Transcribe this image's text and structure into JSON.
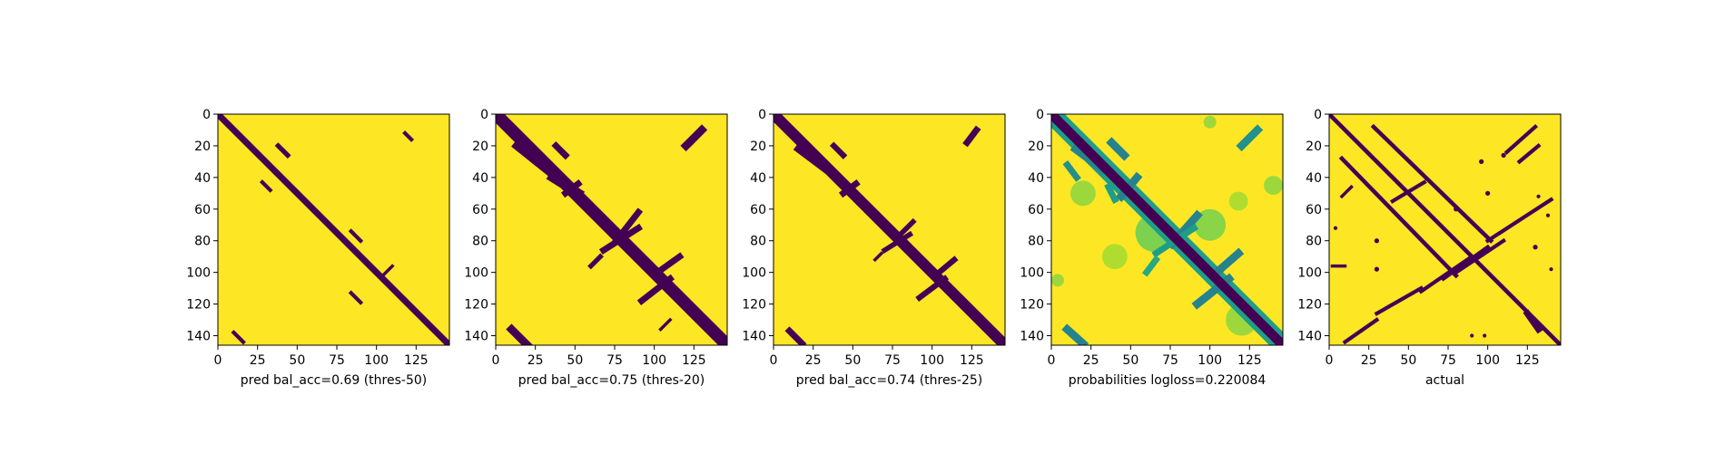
{
  "figure": {
    "background": "#ffffff"
  },
  "colors": {
    "background_class": "#fde725",
    "contact_class": "#440154",
    "colormap": "viridis"
  },
  "chart_data": [
    {
      "type": "heatmap",
      "title": "",
      "xlabel": "pred bal_acc=0.69 (thres-50)",
      "ylabel": "",
      "size": 146,
      "xlim": [
        0,
        146
      ],
      "ylim": [
        146,
        0
      ],
      "xticks": [
        0,
        25,
        50,
        75,
        100,
        125
      ],
      "yticks": [
        0,
        20,
        40,
        60,
        80,
        100,
        120,
        140
      ],
      "grid": false,
      "diagonal_halfwidth": 2,
      "segments": [
        {
          "x0": 38,
          "y0": 20,
          "x1": 44,
          "y1": 26,
          "w": 1.5,
          "v": 0
        },
        {
          "x0": 118,
          "y0": 12,
          "x1": 122,
          "y1": 16,
          "w": 1.2,
          "v": 0
        },
        {
          "x0": 10,
          "y0": 138,
          "x1": 16,
          "y1": 144,
          "w": 1.2,
          "v": 0
        },
        {
          "x0": 28,
          "y0": 43,
          "x1": 33,
          "y1": 48,
          "w": 1.2,
          "v": 0
        },
        {
          "x0": 84,
          "y0": 74,
          "x1": 90,
          "y1": 80,
          "w": 1.2,
          "v": 0
        },
        {
          "x0": 98,
          "y0": 98,
          "x1": 104,
          "y1": 104,
          "w": 1,
          "v": 0
        },
        {
          "x0": 110,
          "y0": 96,
          "x1": 104,
          "y1": 102,
          "w": 1,
          "v": 0
        },
        {
          "x0": 84,
          "y0": 113,
          "x1": 90,
          "y1": 119,
          "w": 1.2,
          "v": 0
        }
      ],
      "blobs": []
    },
    {
      "type": "heatmap",
      "title": "",
      "xlabel": "pred bal_acc=0.75 (thres-20)",
      "ylabel": "",
      "size": 146,
      "xlim": [
        0,
        146
      ],
      "ylim": [
        146,
        0
      ],
      "xticks": [
        0,
        25,
        50,
        75,
        100,
        125
      ],
      "yticks": [
        0,
        20,
        40,
        60,
        80,
        100,
        120,
        140
      ],
      "grid": false,
      "diagonal_halfwidth": 4,
      "segments": [
        {
          "x0": 14,
          "y0": 20,
          "x1": 34,
          "y1": 36,
          "w": 3,
          "v": 0
        },
        {
          "x0": 36,
          "y0": 40,
          "x1": 52,
          "y1": 50,
          "w": 3,
          "v": 0
        },
        {
          "x0": 38,
          "y0": 20,
          "x1": 44,
          "y1": 26,
          "w": 2,
          "v": 0
        },
        {
          "x0": 130,
          "y0": 10,
          "x1": 120,
          "y1": 20,
          "w": 2.5,
          "v": 0
        },
        {
          "x0": 10,
          "y0": 136,
          "x1": 20,
          "y1": 146,
          "w": 2.5,
          "v": 0
        },
        {
          "x0": 76,
          "y0": 80,
          "x1": 90,
          "y1": 62,
          "w": 2,
          "v": 0
        },
        {
          "x0": 68,
          "y0": 86,
          "x1": 90,
          "y1": 72,
          "w": 2,
          "v": 0
        },
        {
          "x0": 102,
          "y0": 100,
          "x1": 116,
          "y1": 90,
          "w": 2,
          "v": 0
        },
        {
          "x0": 92,
          "y0": 118,
          "x1": 110,
          "y1": 104,
          "w": 2,
          "v": 0
        },
        {
          "x0": 60,
          "y0": 96,
          "x1": 66,
          "y1": 90,
          "w": 1.5,
          "v": 0
        },
        {
          "x0": 110,
          "y0": 130,
          "x1": 104,
          "y1": 136,
          "w": 1,
          "v": 0
        },
        {
          "x0": 44,
          "y0": 50,
          "x1": 52,
          "y1": 44,
          "w": 2,
          "v": 0
        }
      ],
      "blobs": []
    },
    {
      "type": "heatmap",
      "title": "",
      "xlabel": "pred bal_acc=0.74 (thres-25)",
      "ylabel": "",
      "size": 146,
      "xlim": [
        0,
        146
      ],
      "ylim": [
        146,
        0
      ],
      "xticks": [
        0,
        25,
        50,
        75,
        100,
        125
      ],
      "yticks": [
        0,
        20,
        40,
        60,
        80,
        100,
        120,
        140
      ],
      "grid": false,
      "diagonal_halfwidth": 3.5,
      "segments": [
        {
          "x0": 16,
          "y0": 22,
          "x1": 32,
          "y1": 34,
          "w": 2.5,
          "v": 0
        },
        {
          "x0": 38,
          "y0": 20,
          "x1": 44,
          "y1": 26,
          "w": 1.8,
          "v": 0
        },
        {
          "x0": 128,
          "y0": 10,
          "x1": 122,
          "y1": 18,
          "w": 2,
          "v": 0
        },
        {
          "x0": 10,
          "y0": 137,
          "x1": 18,
          "y1": 145,
          "w": 2,
          "v": 0
        },
        {
          "x0": 44,
          "y0": 50,
          "x1": 52,
          "y1": 44,
          "w": 2,
          "v": 0
        },
        {
          "x0": 78,
          "y0": 78,
          "x1": 88,
          "y1": 68,
          "w": 1.6,
          "v": 0
        },
        {
          "x0": 70,
          "y0": 86,
          "x1": 86,
          "y1": 76,
          "w": 1.6,
          "v": 0
        },
        {
          "x0": 102,
          "y0": 102,
          "x1": 114,
          "y1": 92,
          "w": 1.8,
          "v": 0
        },
        {
          "x0": 92,
          "y0": 116,
          "x1": 108,
          "y1": 104,
          "w": 1.8,
          "v": 0
        },
        {
          "x0": 64,
          "y0": 92,
          "x1": 68,
          "y1": 88,
          "w": 1,
          "v": 0
        }
      ],
      "blobs": []
    },
    {
      "type": "heatmap",
      "title": "",
      "xlabel": "probabilities logloss=0.220084",
      "ylabel": "",
      "size": 146,
      "xlim": [
        0,
        146
      ],
      "ylim": [
        146,
        0
      ],
      "xticks": [
        0,
        25,
        50,
        75,
        100,
        125
      ],
      "yticks": [
        0,
        20,
        40,
        60,
        80,
        100,
        120,
        140
      ],
      "grid": false,
      "diagonal_halfwidth": 3,
      "diagonal_halo": true,
      "segments": [
        {
          "x0": 16,
          "y0": 22,
          "x1": 32,
          "y1": 34,
          "w": 3,
          "v": 0.45
        },
        {
          "x0": 38,
          "y0": 18,
          "x1": 46,
          "y1": 26,
          "w": 2.5,
          "v": 0.45
        },
        {
          "x0": 130,
          "y0": 10,
          "x1": 120,
          "y1": 20,
          "w": 2.5,
          "v": 0.5
        },
        {
          "x0": 10,
          "y0": 136,
          "x1": 20,
          "y1": 145,
          "w": 2.5,
          "v": 0.45
        },
        {
          "x0": 10,
          "y0": 32,
          "x1": 16,
          "y1": 40,
          "w": 2,
          "v": 0.5
        },
        {
          "x0": 44,
          "y0": 52,
          "x1": 54,
          "y1": 40,
          "w": 2.5,
          "v": 0.45
        },
        {
          "x0": 36,
          "y0": 46,
          "x1": 40,
          "y1": 54,
          "w": 2,
          "v": 0.55
        },
        {
          "x0": 76,
          "y0": 82,
          "x1": 92,
          "y1": 64,
          "w": 2.5,
          "v": 0.45
        },
        {
          "x0": 66,
          "y0": 88,
          "x1": 90,
          "y1": 72,
          "w": 2,
          "v": 0.55
        },
        {
          "x0": 102,
          "y0": 102,
          "x1": 118,
          "y1": 88,
          "w": 2.5,
          "v": 0.45
        },
        {
          "x0": 92,
          "y0": 120,
          "x1": 112,
          "y1": 104,
          "w": 2.5,
          "v": 0.45
        },
        {
          "x0": 60,
          "y0": 100,
          "x1": 66,
          "y1": 92,
          "w": 2,
          "v": 0.6
        }
      ],
      "blobs": [
        {
          "x": 65,
          "y": 75,
          "r": 12,
          "v": 0.8
        },
        {
          "x": 100,
          "y": 70,
          "r": 10,
          "v": 0.82
        },
        {
          "x": 120,
          "y": 130,
          "r": 10,
          "v": 0.85
        },
        {
          "x": 140,
          "y": 45,
          "r": 6,
          "v": 0.85
        },
        {
          "x": 40,
          "y": 90,
          "r": 8,
          "v": 0.88
        },
        {
          "x": 4,
          "y": 105,
          "r": 4,
          "v": 0.85
        },
        {
          "x": 20,
          "y": 50,
          "r": 8,
          "v": 0.85
        },
        {
          "x": 118,
          "y": 55,
          "r": 6,
          "v": 0.88
        },
        {
          "x": 100,
          "y": 5,
          "r": 4,
          "v": 0.85
        }
      ]
    },
    {
      "type": "heatmap",
      "title": "",
      "xlabel": "actual",
      "ylabel": "",
      "size": 146,
      "xlim": [
        0,
        146
      ],
      "ylim": [
        146,
        0
      ],
      "xticks": [
        0,
        25,
        50,
        75,
        100,
        125
      ],
      "yticks": [
        0,
        20,
        40,
        60,
        80,
        100,
        120,
        140
      ],
      "grid": false,
      "diagonal_halfwidth": 1.3,
      "segments": [
        {
          "x0": 28,
          "y0": 8,
          "x1": 102,
          "y1": 80,
          "w": 1.3,
          "v": 0
        },
        {
          "x0": 8,
          "y0": 28,
          "x1": 80,
          "y1": 102,
          "w": 1.3,
          "v": 0
        },
        {
          "x0": 40,
          "y0": 55,
          "x1": 60,
          "y1": 43,
          "w": 1.2,
          "v": 0
        },
        {
          "x0": 80,
          "y0": 100,
          "x1": 110,
          "y1": 80,
          "w": 1.2,
          "v": 0
        },
        {
          "x0": 72,
          "y0": 104,
          "x1": 100,
          "y1": 84,
          "w": 1.2,
          "v": 0
        },
        {
          "x0": 100,
          "y0": 80,
          "x1": 140,
          "y1": 54,
          "w": 1.2,
          "v": 0
        },
        {
          "x0": 58,
          "y0": 112,
          "x1": 90,
          "y1": 90,
          "w": 1.2,
          "v": 0
        },
        {
          "x0": 30,
          "y0": 126,
          "x1": 58,
          "y1": 110,
          "w": 1.2,
          "v": 0
        },
        {
          "x0": 10,
          "y0": 144,
          "x1": 30,
          "y1": 130,
          "w": 1.2,
          "v": 0
        },
        {
          "x0": 130,
          "y0": 8,
          "x1": 112,
          "y1": 24,
          "w": 1.2,
          "v": 0
        },
        {
          "x0": 120,
          "y0": 30,
          "x1": 132,
          "y1": 20,
          "w": 1.2,
          "v": 0
        },
        {
          "x0": 125,
          "y0": 126,
          "x1": 132,
          "y1": 136,
          "w": 2,
          "v": 0
        },
        {
          "x0": 8,
          "y0": 52,
          "x1": 14,
          "y1": 46,
          "w": 1,
          "v": 0
        },
        {
          "x0": 2,
          "y0": 96,
          "x1": 10,
          "y1": 96,
          "w": 1,
          "v": 0
        }
      ],
      "blobs": [
        {
          "x": 96,
          "y": 30,
          "r": 1.5,
          "v": 0
        },
        {
          "x": 100,
          "y": 50,
          "r": 1.5,
          "v": 0
        },
        {
          "x": 80,
          "y": 60,
          "r": 1.5,
          "v": 0
        },
        {
          "x": 132,
          "y": 52,
          "r": 1.2,
          "v": 0
        },
        {
          "x": 140,
          "y": 98,
          "r": 1.2,
          "v": 0
        },
        {
          "x": 90,
          "y": 140,
          "r": 1.2,
          "v": 0
        },
        {
          "x": 98,
          "y": 140,
          "r": 1.2,
          "v": 0
        },
        {
          "x": 30,
          "y": 98,
          "r": 1.5,
          "v": 0
        },
        {
          "x": 4,
          "y": 72,
          "r": 1.2,
          "v": 0
        },
        {
          "x": 130,
          "y": 84,
          "r": 1.5,
          "v": 0
        },
        {
          "x": 138,
          "y": 64,
          "r": 1.2,
          "v": 0
        },
        {
          "x": 110,
          "y": 26,
          "r": 1.5,
          "v": 0
        },
        {
          "x": 30,
          "y": 80,
          "r": 1.5,
          "v": 0
        }
      ]
    }
  ]
}
